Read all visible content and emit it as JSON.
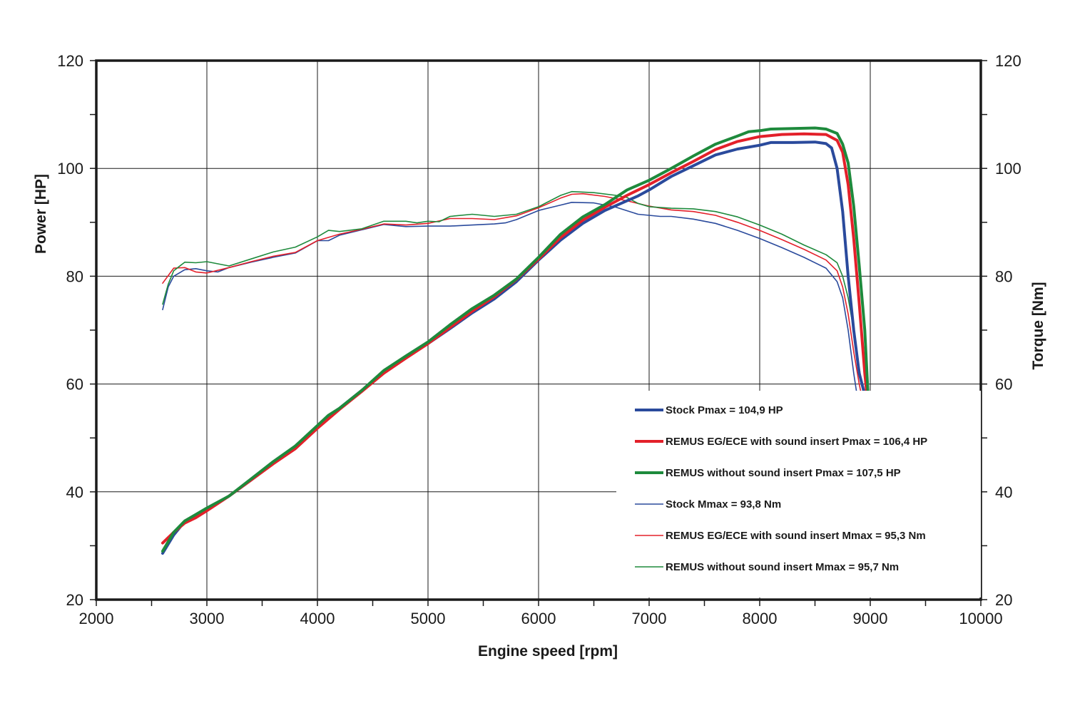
{
  "chart_data": {
    "type": "line",
    "title": "",
    "xlabel": "Engine speed [rpm]",
    "ylabel": "Power [HP]",
    "y2label": "Torque [Nm]",
    "xlim": [
      2000,
      10000
    ],
    "ylim": [
      20,
      120
    ],
    "y2lim": [
      20,
      120
    ],
    "x_ticks": [
      2000,
      3000,
      4000,
      5000,
      6000,
      7000,
      8000,
      9000,
      10000
    ],
    "y_ticks": [
      20,
      40,
      60,
      80,
      100,
      120
    ],
    "grid": true,
    "legend_position": "bottom-right",
    "series": [
      {
        "name": "Stock Pmax = 104,9 HP",
        "color": "#2a4a9c",
        "width": 4,
        "points": [
          [
            2600,
            28.6
          ],
          [
            2700,
            32
          ],
          [
            2800,
            34.5
          ],
          [
            2900,
            35.6
          ],
          [
            3000,
            36.8
          ],
          [
            3200,
            39.2
          ],
          [
            3400,
            42.2
          ],
          [
            3600,
            45.3
          ],
          [
            3800,
            48.3
          ],
          [
            4000,
            52
          ],
          [
            4200,
            55.5
          ],
          [
            4400,
            58.8
          ],
          [
            4600,
            62.2
          ],
          [
            4800,
            65
          ],
          [
            5000,
            67.5
          ],
          [
            5200,
            70.3
          ],
          [
            5400,
            73.2
          ],
          [
            5600,
            75.8
          ],
          [
            5800,
            79
          ],
          [
            6000,
            83
          ],
          [
            6200,
            86.7
          ],
          [
            6400,
            89.8
          ],
          [
            6600,
            92.2
          ],
          [
            6800,
            94
          ],
          [
            6900,
            94.9
          ],
          [
            7000,
            96
          ],
          [
            7200,
            98.5
          ],
          [
            7400,
            100.5
          ],
          [
            7600,
            102.5
          ],
          [
            7800,
            103.6
          ],
          [
            8000,
            104.3
          ],
          [
            8100,
            104.8
          ],
          [
            8300,
            104.8
          ],
          [
            8500,
            104.9
          ],
          [
            8600,
            104.6
          ],
          [
            8650,
            103.8
          ],
          [
            8700,
            100
          ],
          [
            8750,
            92
          ],
          [
            8800,
            80
          ],
          [
            8850,
            70
          ],
          [
            8900,
            62
          ],
          [
            8950,
            58
          ]
        ]
      },
      {
        "name": "REMUS EG/ECE with sound insert Pmax = 106,4 HP",
        "color": "#e3202a",
        "width": 4,
        "points": [
          [
            2600,
            30.5
          ],
          [
            2700,
            32.5
          ],
          [
            2800,
            34.2
          ],
          [
            2900,
            35.2
          ],
          [
            3000,
            36.5
          ],
          [
            3200,
            39.2
          ],
          [
            3400,
            42.2
          ],
          [
            3600,
            45.2
          ],
          [
            3800,
            48
          ],
          [
            4000,
            51.8
          ],
          [
            4200,
            55.3
          ],
          [
            4400,
            58.6
          ],
          [
            4600,
            62
          ],
          [
            4800,
            64.8
          ],
          [
            5000,
            67.5
          ],
          [
            5200,
            70.5
          ],
          [
            5400,
            73.5
          ],
          [
            5600,
            76.2
          ],
          [
            5800,
            79.4
          ],
          [
            6000,
            83.2
          ],
          [
            6200,
            87.2
          ],
          [
            6400,
            90.4
          ],
          [
            6600,
            92.8
          ],
          [
            6800,
            95
          ],
          [
            7000,
            97
          ],
          [
            7200,
            99.2
          ],
          [
            7400,
            101.3
          ],
          [
            7600,
            103.5
          ],
          [
            7800,
            105
          ],
          [
            8000,
            105.9
          ],
          [
            8200,
            106.3
          ],
          [
            8400,
            106.4
          ],
          [
            8600,
            106.3
          ],
          [
            8700,
            105.2
          ],
          [
            8750,
            103
          ],
          [
            8800,
            97
          ],
          [
            8850,
            87
          ],
          [
            8900,
            75
          ],
          [
            8950,
            62
          ],
          [
            8970,
            58
          ]
        ]
      },
      {
        "name": "REMUS without sound insert Pmax = 107,5 HP",
        "color": "#1e8a3c",
        "width": 4,
        "points": [
          [
            2600,
            29
          ],
          [
            2700,
            32.5
          ],
          [
            2800,
            34.6
          ],
          [
            2900,
            35.8
          ],
          [
            3000,
            37
          ],
          [
            3200,
            39.2
          ],
          [
            3400,
            42.4
          ],
          [
            3600,
            45.6
          ],
          [
            3800,
            48.5
          ],
          [
            4000,
            52.3
          ],
          [
            4100,
            54.2
          ],
          [
            4200,
            55.5
          ],
          [
            4400,
            58.8
          ],
          [
            4600,
            62.5
          ],
          [
            4800,
            65.2
          ],
          [
            5000,
            67.8
          ],
          [
            5200,
            71
          ],
          [
            5400,
            74
          ],
          [
            5600,
            76.5
          ],
          [
            5800,
            79.5
          ],
          [
            6000,
            83.5
          ],
          [
            6200,
            87.8
          ],
          [
            6400,
            91
          ],
          [
            6600,
            93.3
          ],
          [
            6800,
            96
          ],
          [
            7000,
            97.8
          ],
          [
            7200,
            100
          ],
          [
            7400,
            102.3
          ],
          [
            7600,
            104.5
          ],
          [
            7800,
            106
          ],
          [
            7900,
            106.8
          ],
          [
            8000,
            107
          ],
          [
            8100,
            107.3
          ],
          [
            8300,
            107.4
          ],
          [
            8500,
            107.5
          ],
          [
            8600,
            107.3
          ],
          [
            8700,
            106.5
          ],
          [
            8750,
            104.5
          ],
          [
            8800,
            101
          ],
          [
            8850,
            93
          ],
          [
            8900,
            82
          ],
          [
            8950,
            70
          ],
          [
            8980,
            58
          ]
        ]
      },
      {
        "name": "Stock Mmax = 93,8 Nm",
        "color": "#2a4a9c",
        "width": 1.6,
        "points": [
          [
            2600,
            73.8
          ],
          [
            2650,
            78
          ],
          [
            2700,
            80
          ],
          [
            2800,
            81.2
          ],
          [
            2900,
            81.4
          ],
          [
            3000,
            81
          ],
          [
            3100,
            80.8
          ],
          [
            3200,
            81.6
          ],
          [
            3400,
            82.6
          ],
          [
            3600,
            83.5
          ],
          [
            3800,
            84.3
          ],
          [
            4000,
            86.6
          ],
          [
            4100,
            86.6
          ],
          [
            4200,
            87.6
          ],
          [
            4400,
            88.6
          ],
          [
            4600,
            89.6
          ],
          [
            4800,
            89.2
          ],
          [
            5000,
            89.3
          ],
          [
            5200,
            89.3
          ],
          [
            5400,
            89.5
          ],
          [
            5600,
            89.7
          ],
          [
            5700,
            89.9
          ],
          [
            5800,
            90.5
          ],
          [
            6000,
            92.2
          ],
          [
            6200,
            93.2
          ],
          [
            6300,
            93.7
          ],
          [
            6500,
            93.6
          ],
          [
            6700,
            92.8
          ],
          [
            6900,
            91.5
          ],
          [
            7100,
            91.1
          ],
          [
            7200,
            91.1
          ],
          [
            7400,
            90.6
          ],
          [
            7600,
            89.8
          ],
          [
            7800,
            88.5
          ],
          [
            8000,
            87
          ],
          [
            8200,
            85.3
          ],
          [
            8400,
            83.5
          ],
          [
            8600,
            81.5
          ],
          [
            8700,
            79
          ],
          [
            8750,
            76
          ],
          [
            8800,
            70
          ],
          [
            8850,
            62
          ],
          [
            8880,
            58
          ]
        ]
      },
      {
        "name": "REMUS EG/ECE with sound insert Mmax = 95,3 Nm",
        "color": "#e3202a",
        "width": 1.6,
        "points": [
          [
            2600,
            78.7
          ],
          [
            2700,
            81.5
          ],
          [
            2800,
            81.6
          ],
          [
            2900,
            80.8
          ],
          [
            3000,
            80.6
          ],
          [
            3200,
            81.6
          ],
          [
            3400,
            82.7
          ],
          [
            3600,
            83.7
          ],
          [
            3800,
            84.4
          ],
          [
            4000,
            86.6
          ],
          [
            4200,
            87.8
          ],
          [
            4400,
            88.7
          ],
          [
            4600,
            89.7
          ],
          [
            4800,
            89.5
          ],
          [
            5000,
            89.8
          ],
          [
            5200,
            90.7
          ],
          [
            5400,
            90.7
          ],
          [
            5600,
            90.5
          ],
          [
            5800,
            91.2
          ],
          [
            6000,
            92.7
          ],
          [
            6200,
            94.5
          ],
          [
            6300,
            95.2
          ],
          [
            6400,
            95.3
          ],
          [
            6600,
            94.8
          ],
          [
            6800,
            94
          ],
          [
            7000,
            93
          ],
          [
            7200,
            92.3
          ],
          [
            7400,
            92
          ],
          [
            7600,
            91.3
          ],
          [
            7800,
            90
          ],
          [
            8000,
            88.5
          ],
          [
            8200,
            86.8
          ],
          [
            8400,
            85
          ],
          [
            8600,
            83
          ],
          [
            8700,
            81
          ],
          [
            8750,
            78
          ],
          [
            8800,
            73
          ],
          [
            8850,
            66
          ],
          [
            8900,
            60
          ],
          [
            8920,
            58
          ]
        ]
      },
      {
        "name": "REMUS without sound insert Mmax = 95,7 Nm",
        "color": "#1e8a3c",
        "width": 1.6,
        "points": [
          [
            2600,
            74.8
          ],
          [
            2650,
            78.5
          ],
          [
            2700,
            81
          ],
          [
            2800,
            82.6
          ],
          [
            2900,
            82.5
          ],
          [
            3000,
            82.7
          ],
          [
            3100,
            82.3
          ],
          [
            3200,
            81.9
          ],
          [
            3400,
            83.2
          ],
          [
            3600,
            84.5
          ],
          [
            3800,
            85.4
          ],
          [
            4000,
            87.3
          ],
          [
            4100,
            88.5
          ],
          [
            4200,
            88.3
          ],
          [
            4400,
            88.8
          ],
          [
            4600,
            90.2
          ],
          [
            4800,
            90.2
          ],
          [
            4900,
            89.9
          ],
          [
            5000,
            90.2
          ],
          [
            5100,
            90.1
          ],
          [
            5200,
            91.1
          ],
          [
            5400,
            91.5
          ],
          [
            5600,
            91.1
          ],
          [
            5800,
            91.5
          ],
          [
            6000,
            92.9
          ],
          [
            6200,
            95
          ],
          [
            6300,
            95.7
          ],
          [
            6500,
            95.5
          ],
          [
            6700,
            95
          ],
          [
            6800,
            94.6
          ],
          [
            6900,
            93.5
          ],
          [
            7000,
            92.9
          ],
          [
            7200,
            92.6
          ],
          [
            7400,
            92.5
          ],
          [
            7600,
            92
          ],
          [
            7800,
            91
          ],
          [
            8000,
            89.5
          ],
          [
            8200,
            87.8
          ],
          [
            8400,
            85.8
          ],
          [
            8600,
            84
          ],
          [
            8700,
            82.5
          ],
          [
            8750,
            80
          ],
          [
            8800,
            76
          ],
          [
            8850,
            70
          ],
          [
            8900,
            63
          ],
          [
            8940,
            58
          ]
        ]
      }
    ]
  }
}
